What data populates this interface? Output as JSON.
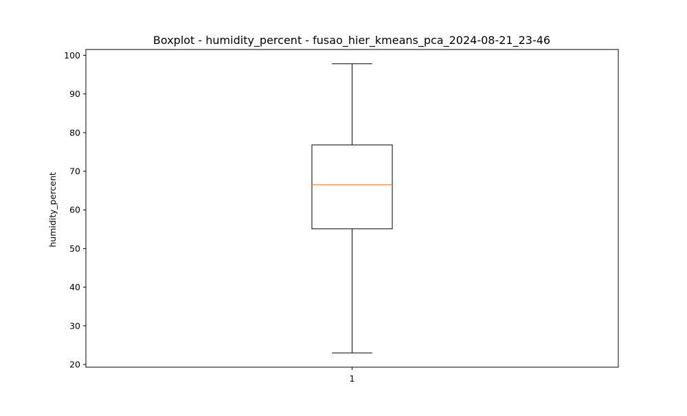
{
  "chart_data": {
    "type": "boxplot",
    "title": "Boxplot - humidity_percent - fusao_hier_kmeans_pca_2024-08-21_23-46",
    "xlabel": "",
    "ylabel": "humidity_percent",
    "categories": [
      "1"
    ],
    "ylim": [
      19.3,
      101.5
    ],
    "yticks": [
      20,
      30,
      40,
      50,
      60,
      70,
      80,
      90,
      100
    ],
    "ytick_labels": [
      "20",
      "30",
      "40",
      "50",
      "60",
      "70",
      "80",
      "90",
      "100"
    ],
    "grid": false,
    "series": [
      {
        "whisker_low": 23,
        "q1": 55.1,
        "median": 66.5,
        "q3": 76.8,
        "whisker_high": 97.8
      }
    ],
    "colors": {
      "box": "#000000",
      "median": "#ff7f0e",
      "whisker": "#000000"
    }
  }
}
